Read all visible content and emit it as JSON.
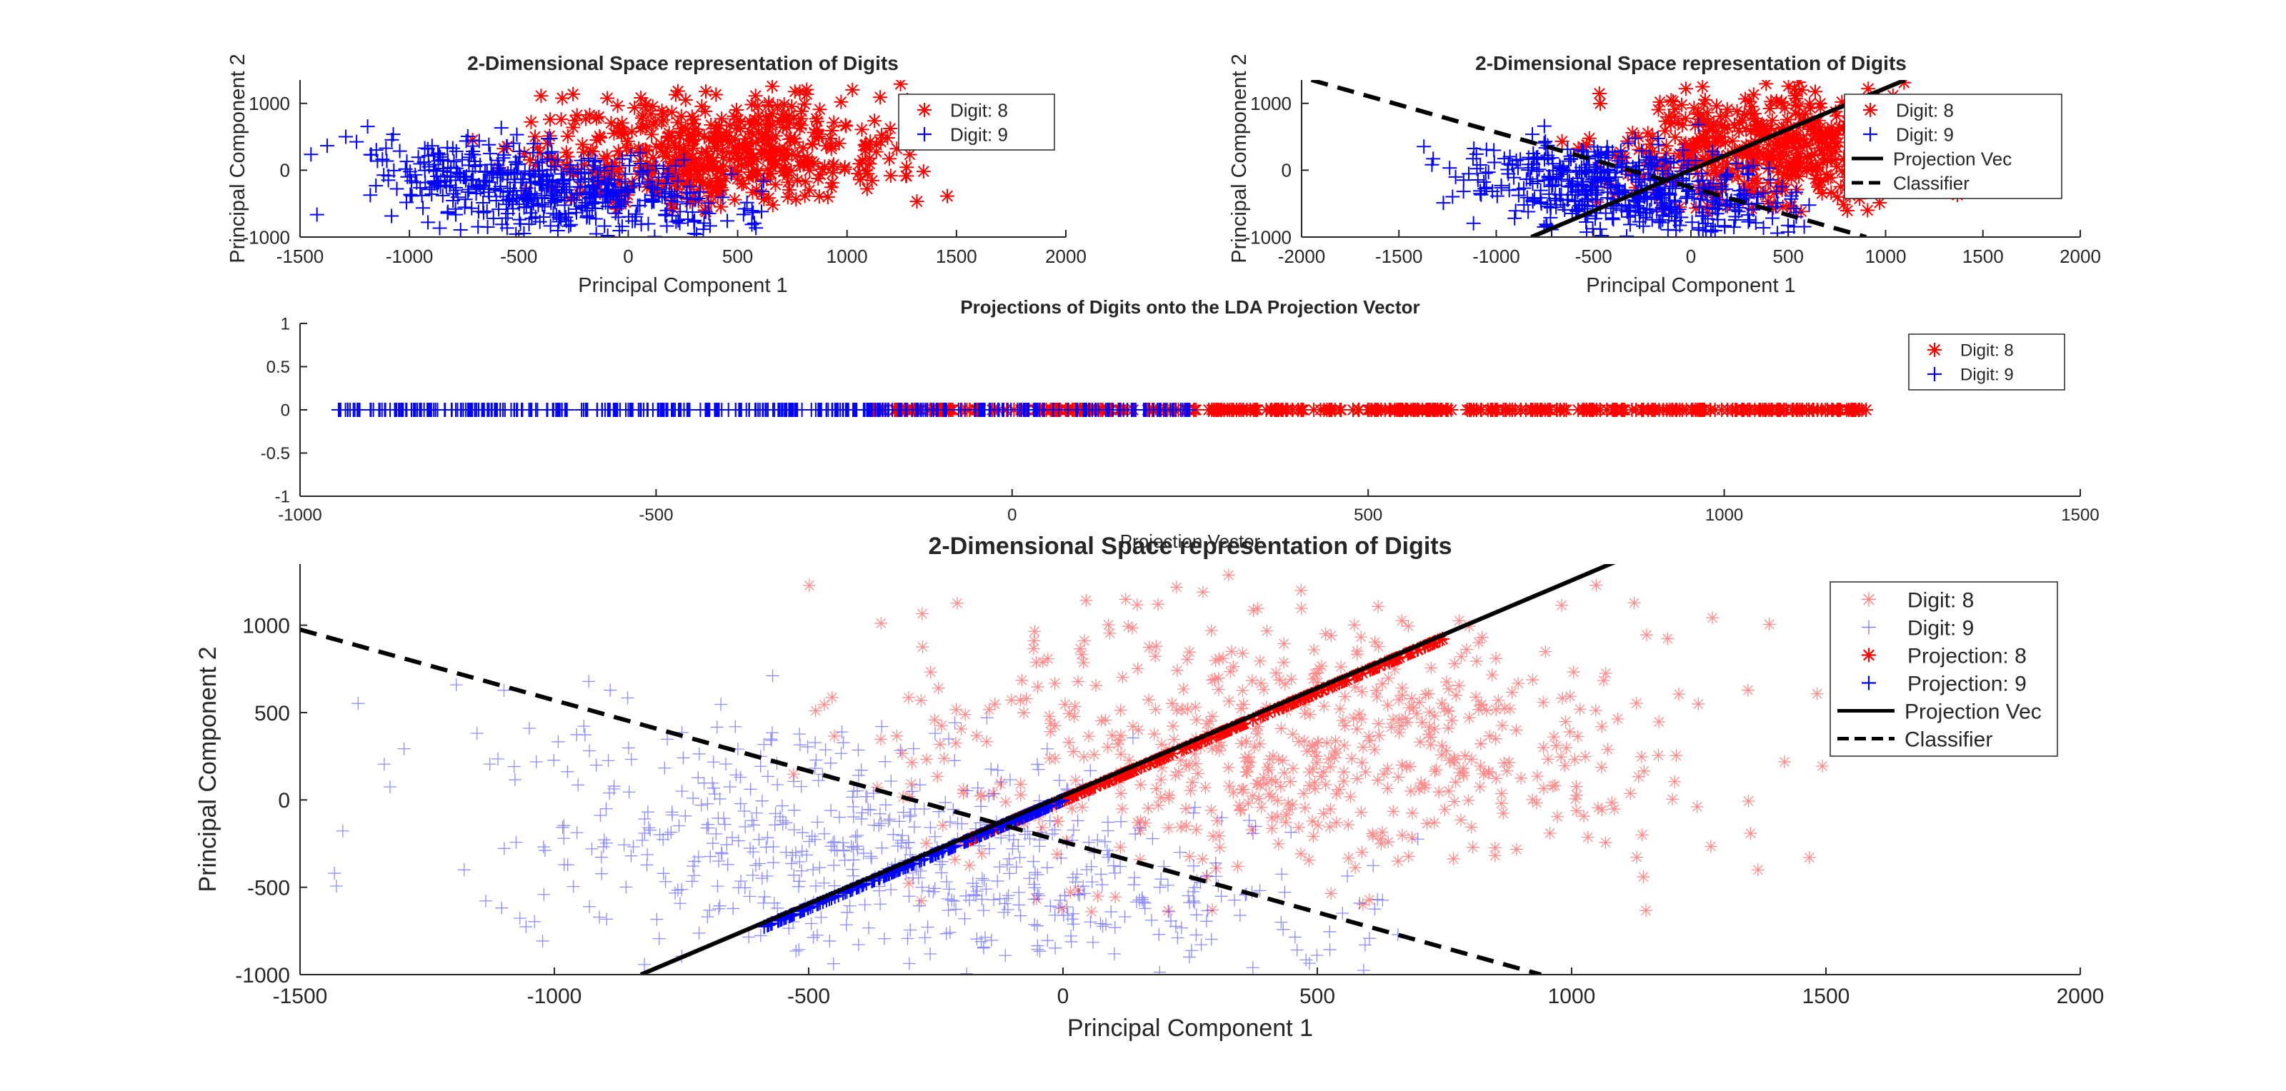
{
  "figure": {
    "background": "#ffffff"
  },
  "colors": {
    "digit8": "#ff0000",
    "digit9": "#0000ff",
    "black": "#000000",
    "axis": "#262626"
  },
  "chart_data": [
    {
      "id": "top-left",
      "type": "scatter",
      "title": "2-Dimensional Space representation of Digits",
      "xlabel": "Principal Component 1",
      "ylabel": "Principal Component 2",
      "xlim": [
        -1500,
        2000
      ],
      "ylim": [
        -1000,
        1350
      ],
      "xticks": [
        -1500,
        -1000,
        -500,
        0,
        500,
        1000,
        1500,
        2000
      ],
      "yticks": [
        -1000,
        0,
        1000
      ],
      "legend_position": "top-right",
      "series": [
        {
          "name": "Digit: 8",
          "marker": "asterisk",
          "color": "#ff0000",
          "cloud": {
            "center": [
              400,
              300
            ],
            "spread": [
              420,
              420
            ],
            "count": 520,
            "xrange": [
              -750,
              1480
            ],
            "yrange": [
              -650,
              1350
            ]
          }
        },
        {
          "name": "Digit: 9",
          "marker": "plus",
          "color": "#0000ff",
          "cloud": {
            "center": [
              -350,
              -300
            ],
            "spread": [
              420,
              330
            ],
            "count": 520,
            "xrange": [
              -1450,
              620
            ],
            "yrange": [
              -1000,
              750
            ]
          }
        }
      ],
      "lines": []
    },
    {
      "id": "top-right",
      "type": "scatter",
      "title": "2-Dimensional Space representation of Digits",
      "xlabel": "Principal Component 1",
      "ylabel": "Principal Component 2",
      "xlim": [
        -2000,
        2000
      ],
      "ylim": [
        -1000,
        1350
      ],
      "xticks": [
        -2000,
        -1500,
        -1000,
        -500,
        0,
        500,
        1000,
        1500,
        2000
      ],
      "yticks": [
        -1000,
        0,
        1000
      ],
      "legend_position": "top-right",
      "series": [
        {
          "name": "Digit: 8",
          "marker": "asterisk",
          "color": "#ff0000",
          "cloud": {
            "center": [
              400,
              300
            ],
            "spread": [
              420,
              420
            ],
            "count": 520,
            "xrange": [
              -750,
              1480
            ],
            "yrange": [
              -650,
              1350
            ]
          }
        },
        {
          "name": "Digit: 9",
          "marker": "plus",
          "color": "#0000ff",
          "cloud": {
            "center": [
              -350,
              -300
            ],
            "spread": [
              420,
              330
            ],
            "count": 520,
            "xrange": [
              -1450,
              620
            ],
            "yrange": [
              -1000,
              750
            ]
          }
        }
      ],
      "lines": [
        {
          "name": "Projection Vec",
          "style": "solid",
          "x": [
            -820,
            1100
          ],
          "y": [
            -1000,
            1350
          ]
        },
        {
          "name": "Classifier",
          "style": "dashed",
          "x": [
            -1950,
            900
          ],
          "y": [
            1350,
            -1000
          ]
        }
      ]
    },
    {
      "id": "middle",
      "type": "scatter",
      "title": "Projections of Digits onto the LDA Projection Vector",
      "xlabel": "Projection Vector",
      "ylabel": "",
      "xlim": [
        -1000,
        1500
      ],
      "ylim": [
        -1,
        1
      ],
      "xticks": [
        -1000,
        -500,
        0,
        500,
        1000,
        1500
      ],
      "yticks": [
        -1,
        -0.5,
        0,
        0.5,
        1
      ],
      "legend_position": "top-right",
      "series": [
        {
          "name": "Digit: 8",
          "marker": "asterisk",
          "color": "#ff0000",
          "strip": {
            "y": 0,
            "xrange": [
              -200,
              1200
            ],
            "count": 460
          }
        },
        {
          "name": "Digit: 9",
          "marker": "plus",
          "color": "#0000ff",
          "strip": {
            "y": 0,
            "xrange": [
              -950,
              250
            ],
            "count": 460
          }
        }
      ],
      "lines": []
    },
    {
      "id": "bottom",
      "type": "scatter",
      "title": "2-Dimensional Space representation of Digits",
      "xlabel": "Principal Component 1",
      "ylabel": "Principal Component 2",
      "xlim": [
        -1500,
        2000
      ],
      "ylim": [
        -1000,
        1350
      ],
      "xticks": [
        -1500,
        -1000,
        -500,
        0,
        500,
        1000,
        1500,
        2000
      ],
      "yticks": [
        -1000,
        -500,
        0,
        500,
        1000
      ],
      "legend_position": "top-right",
      "series": [
        {
          "name": "Digit: 8",
          "marker": "asterisk",
          "color": "#ff0000",
          "faded": true,
          "cloud": {
            "center": [
              450,
              300
            ],
            "spread": [
              430,
              400
            ],
            "count": 620,
            "xrange": [
              -700,
              1500
            ],
            "yrange": [
              -650,
              1350
            ]
          }
        },
        {
          "name": "Digit: 9",
          "marker": "plus",
          "color": "#0000ff",
          "faded": true,
          "cloud": {
            "center": [
              -350,
              -300
            ],
            "spread": [
              420,
              330
            ],
            "count": 620,
            "xrange": [
              -1450,
              700
            ],
            "yrange": [
              -1000,
              850
            ]
          }
        },
        {
          "name": "Projection: 8",
          "marker": "asterisk",
          "color": "#ff0000",
          "proj": {
            "x0": -200,
            "x1": 750,
            "count": 200
          }
        },
        {
          "name": "Projection: 9",
          "marker": "plus",
          "color": "#0000ff",
          "proj": {
            "x0": -590,
            "x1": 0,
            "count": 200
          }
        }
      ],
      "lines": [
        {
          "name": "Projection Vec",
          "style": "solid",
          "x": [
            -830,
            1100
          ],
          "y": [
            -1000,
            1380
          ]
        },
        {
          "name": "Classifier",
          "style": "dashed",
          "x": [
            -1500,
            940
          ],
          "y": [
            975,
            -1000
          ]
        }
      ],
      "projection_slope": 1.235
    }
  ]
}
